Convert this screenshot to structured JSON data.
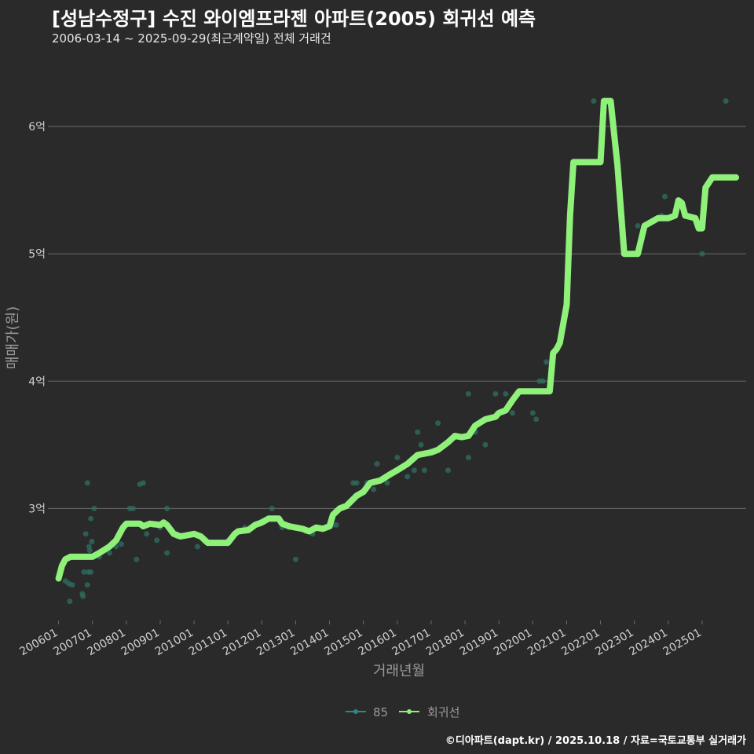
{
  "header": {
    "title": "[성남수정구] 수진 와이엠프라젠 아파트(2005) 회귀선 예측",
    "subtitle": "2006-03-14 ~ 2025-09-29(최근계약일) 전체 거래건"
  },
  "caption": "©디아파트(dapt.kr) / 2025.10.18 / 자료=국토교통부 실거래가",
  "colors": {
    "background": "#2a2a2b",
    "grid": "#6b6b6b",
    "scatter": "#2f6f62",
    "regression": "#8ff07a",
    "legend_85": "#2a8a88",
    "text_muted": "#9a9a9a",
    "tick_text": "#cfcfcf"
  },
  "chart_data": {
    "type": "line",
    "xlabel": "거래년월",
    "ylabel": "매매가(원)",
    "x_range": [
      2005.8,
      2026.3
    ],
    "ylim": [
      2.12,
      6.5
    ],
    "y_ticks": [
      {
        "value": 3,
        "label": "3억"
      },
      {
        "value": 4,
        "label": "4억"
      },
      {
        "value": 5,
        "label": "5억"
      },
      {
        "value": 6,
        "label": "6억"
      }
    ],
    "x_ticks": [
      {
        "value": 2006,
        "label": "200601"
      },
      {
        "value": 2007,
        "label": "200701"
      },
      {
        "value": 2008,
        "label": "200801"
      },
      {
        "value": 2009,
        "label": "200901"
      },
      {
        "value": 2010,
        "label": "201001"
      },
      {
        "value": 2011,
        "label": "201101"
      },
      {
        "value": 2012,
        "label": "201201"
      },
      {
        "value": 2013,
        "label": "201301"
      },
      {
        "value": 2014,
        "label": "201401"
      },
      {
        "value": 2015,
        "label": "201501"
      },
      {
        "value": 2016,
        "label": "201601"
      },
      {
        "value": 2017,
        "label": "201701"
      },
      {
        "value": 2018,
        "label": "201801"
      },
      {
        "value": 2019,
        "label": "201901"
      },
      {
        "value": 2020,
        "label": "202001"
      },
      {
        "value": 2021,
        "label": "202101"
      },
      {
        "value": 2022,
        "label": "202201"
      },
      {
        "value": 2023,
        "label": "202301"
      },
      {
        "value": 2024,
        "label": "202401"
      },
      {
        "value": 2025,
        "label": "202501"
      }
    ],
    "legend": [
      {
        "name": "85",
        "kind": "scatter"
      },
      {
        "name": "회귀선",
        "kind": "line"
      }
    ],
    "series": [
      {
        "name": "85",
        "kind": "scatter",
        "points": [
          [
            2006.2,
            2.43
          ],
          [
            2006.3,
            2.41
          ],
          [
            2006.33,
            2.27
          ],
          [
            2006.4,
            2.4
          ],
          [
            2006.7,
            2.33
          ],
          [
            2006.72,
            2.31
          ],
          [
            2006.75,
            2.5
          ],
          [
            2006.8,
            2.8
          ],
          [
            2006.85,
            2.4
          ],
          [
            2006.88,
            2.5
          ],
          [
            2006.9,
            2.7
          ],
          [
            2006.92,
            2.67
          ],
          [
            2006.95,
            2.5
          ],
          [
            2006.98,
            2.74
          ],
          [
            2006.85,
            3.2
          ],
          [
            2006.95,
            2.92
          ],
          [
            2007.05,
            3.0
          ],
          [
            2007.2,
            2.62
          ],
          [
            2007.5,
            2.65
          ],
          [
            2007.7,
            2.7
          ],
          [
            2007.85,
            2.72
          ],
          [
            2008.1,
            3.0
          ],
          [
            2008.2,
            3.0
          ],
          [
            2008.3,
            2.6
          ],
          [
            2008.4,
            3.19
          ],
          [
            2008.5,
            3.2
          ],
          [
            2008.6,
            2.8
          ],
          [
            2008.8,
            2.87
          ],
          [
            2008.9,
            2.75
          ],
          [
            2009.0,
            2.85
          ],
          [
            2009.2,
            3.0
          ],
          [
            2009.2,
            2.65
          ],
          [
            2009.5,
            2.78
          ],
          [
            2010.0,
            2.8
          ],
          [
            2010.1,
            2.7
          ],
          [
            2010.5,
            2.73
          ],
          [
            2011.0,
            2.75
          ],
          [
            2011.5,
            2.85
          ],
          [
            2012.0,
            2.9
          ],
          [
            2012.3,
            3.0
          ],
          [
            2012.6,
            2.85
          ],
          [
            2012.8,
            2.85
          ],
          [
            2013.0,
            2.6
          ],
          [
            2013.3,
            2.82
          ],
          [
            2013.5,
            2.8
          ],
          [
            2013.7,
            2.85
          ],
          [
            2014.1,
            2.87
          ],
          [
            2014.2,
            2.87
          ],
          [
            2014.3,
            3.0
          ],
          [
            2014.6,
            3.05
          ],
          [
            2014.7,
            3.2
          ],
          [
            2014.8,
            3.2
          ],
          [
            2015.1,
            3.2
          ],
          [
            2015.3,
            3.15
          ],
          [
            2015.4,
            3.35
          ],
          [
            2015.7,
            3.2
          ],
          [
            2016.0,
            3.4
          ],
          [
            2016.3,
            3.25
          ],
          [
            2016.5,
            3.3
          ],
          [
            2016.6,
            3.6
          ],
          [
            2016.7,
            3.5
          ],
          [
            2016.8,
            3.3
          ],
          [
            2017.0,
            3.45
          ],
          [
            2017.2,
            3.67
          ],
          [
            2017.5,
            3.3
          ],
          [
            2018.1,
            3.4
          ],
          [
            2018.1,
            3.9
          ],
          [
            2018.3,
            3.6
          ],
          [
            2018.6,
            3.5
          ],
          [
            2018.9,
            3.9
          ],
          [
            2019.2,
            3.9
          ],
          [
            2019.4,
            3.75
          ],
          [
            2020.0,
            3.75
          ],
          [
            2020.1,
            3.7
          ],
          [
            2020.2,
            4.0
          ],
          [
            2020.3,
            4.0
          ],
          [
            2020.4,
            4.15
          ],
          [
            2021.1,
            5.3
          ],
          [
            2021.2,
            5.65
          ],
          [
            2021.8,
            6.2
          ],
          [
            2023.1,
            5.22
          ],
          [
            2023.3,
            5.22
          ],
          [
            2023.8,
            5.3
          ],
          [
            2023.9,
            5.45
          ],
          [
            2024.6,
            5.3
          ],
          [
            2025.0,
            5.0
          ],
          [
            2025.7,
            6.2
          ]
        ]
      },
      {
        "name": "회귀선",
        "kind": "line",
        "points": [
          [
            2006.0,
            2.45
          ],
          [
            2006.1,
            2.55
          ],
          [
            2006.2,
            2.6
          ],
          [
            2006.35,
            2.62
          ],
          [
            2007.0,
            2.62
          ],
          [
            2007.2,
            2.65
          ],
          [
            2007.5,
            2.7
          ],
          [
            2007.7,
            2.75
          ],
          [
            2007.9,
            2.85
          ],
          [
            2008.0,
            2.88
          ],
          [
            2008.4,
            2.88
          ],
          [
            2008.5,
            2.86
          ],
          [
            2008.7,
            2.88
          ],
          [
            2009.0,
            2.87
          ],
          [
            2009.1,
            2.89
          ],
          [
            2009.2,
            2.87
          ],
          [
            2009.4,
            2.8
          ],
          [
            2009.6,
            2.78
          ],
          [
            2010.0,
            2.8
          ],
          [
            2010.2,
            2.78
          ],
          [
            2010.4,
            2.73
          ],
          [
            2011.0,
            2.73
          ],
          [
            2011.2,
            2.8
          ],
          [
            2011.3,
            2.82
          ],
          [
            2011.6,
            2.83
          ],
          [
            2011.8,
            2.87
          ],
          [
            2012.0,
            2.89
          ],
          [
            2012.2,
            2.92
          ],
          [
            2012.5,
            2.92
          ],
          [
            2012.6,
            2.88
          ],
          [
            2012.8,
            2.86
          ],
          [
            2013.0,
            2.85
          ],
          [
            2013.2,
            2.84
          ],
          [
            2013.4,
            2.82
          ],
          [
            2013.6,
            2.85
          ],
          [
            2013.8,
            2.84
          ],
          [
            2014.0,
            2.86
          ],
          [
            2014.1,
            2.95
          ],
          [
            2014.3,
            3.0
          ],
          [
            2014.5,
            3.02
          ],
          [
            2014.8,
            3.1
          ],
          [
            2015.0,
            3.13
          ],
          [
            2015.2,
            3.2
          ],
          [
            2015.5,
            3.22
          ],
          [
            2015.8,
            3.27
          ],
          [
            2016.0,
            3.3
          ],
          [
            2016.3,
            3.35
          ],
          [
            2016.6,
            3.42
          ],
          [
            2017.0,
            3.44
          ],
          [
            2017.2,
            3.46
          ],
          [
            2017.5,
            3.52
          ],
          [
            2017.7,
            3.57
          ],
          [
            2017.9,
            3.56
          ],
          [
            2018.1,
            3.57
          ],
          [
            2018.3,
            3.65
          ],
          [
            2018.6,
            3.7
          ],
          [
            2018.9,
            3.72
          ],
          [
            2019.0,
            3.75
          ],
          [
            2019.2,
            3.77
          ],
          [
            2019.4,
            3.85
          ],
          [
            2019.6,
            3.92
          ],
          [
            2020.0,
            3.92
          ],
          [
            2020.3,
            3.92
          ],
          [
            2020.5,
            3.92
          ],
          [
            2020.6,
            4.22
          ],
          [
            2020.7,
            4.25
          ],
          [
            2020.8,
            4.3
          ],
          [
            2020.9,
            4.45
          ],
          [
            2021.0,
            4.6
          ],
          [
            2021.1,
            5.3
          ],
          [
            2021.2,
            5.72
          ],
          [
            2021.5,
            5.72
          ],
          [
            2021.8,
            5.72
          ],
          [
            2022.0,
            5.72
          ],
          [
            2022.1,
            6.2
          ],
          [
            2022.3,
            6.2
          ],
          [
            2022.5,
            5.7
          ],
          [
            2022.7,
            5.0
          ],
          [
            2023.0,
            5.0
          ],
          [
            2023.1,
            5.0
          ],
          [
            2023.3,
            5.22
          ],
          [
            2023.5,
            5.25
          ],
          [
            2023.7,
            5.28
          ],
          [
            2024.0,
            5.28
          ],
          [
            2024.2,
            5.3
          ],
          [
            2024.3,
            5.42
          ],
          [
            2024.4,
            5.4
          ],
          [
            2024.5,
            5.3
          ],
          [
            2024.8,
            5.28
          ],
          [
            2024.9,
            5.2
          ],
          [
            2025.0,
            5.2
          ],
          [
            2025.1,
            5.52
          ],
          [
            2025.3,
            5.6
          ],
          [
            2025.8,
            5.6
          ],
          [
            2026.0,
            5.6
          ]
        ]
      }
    ]
  }
}
